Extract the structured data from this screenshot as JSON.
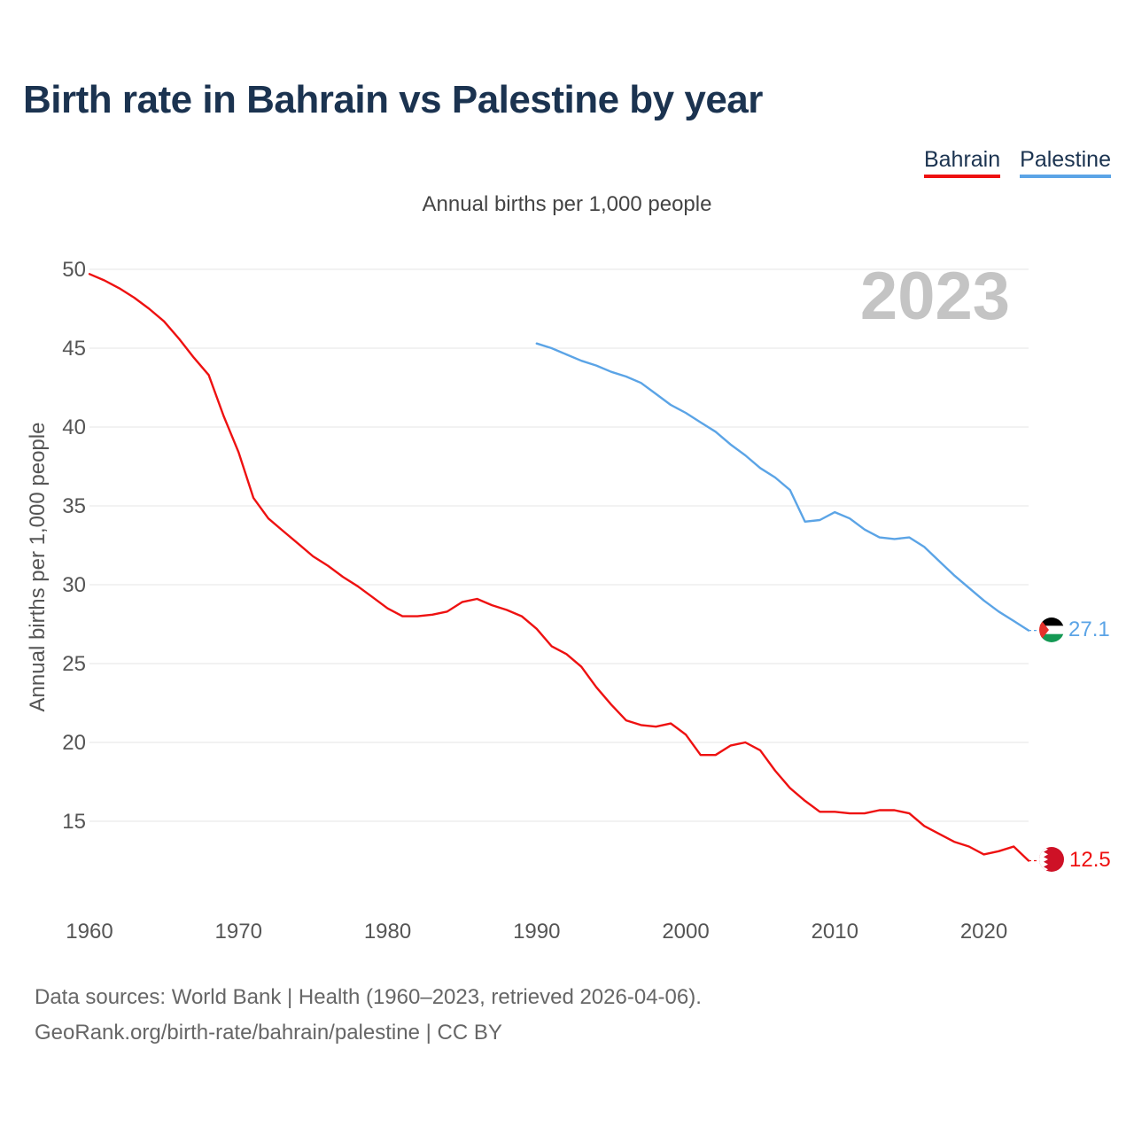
{
  "title": "Birth rate in Bahrain vs Palestine by year",
  "subtitle": "Annual births per 1,000 people",
  "legend": [
    {
      "label": "Bahrain",
      "color": "#ee1111"
    },
    {
      "label": "Palestine",
      "color": "#5ba4e6"
    }
  ],
  "year_watermark": "2023",
  "footer": {
    "line1": "Data sources: World Bank | Health (1960–2023, retrieved 2026-04-06).",
    "line2": "GeoRank.org/birth-rate/bahrain/palestine | CC BY"
  },
  "chart_data": {
    "type": "line",
    "title": "Birth rate in Bahrain vs Palestine by year",
    "xlabel": "",
    "ylabel": "Annual births per 1,000 people",
    "xlim": [
      1960,
      2023
    ],
    "ylim": [
      10,
      50
    ],
    "xticks": [
      1960,
      1970,
      1980,
      1990,
      2000,
      2010,
      2020
    ],
    "yticks": [
      15,
      20,
      25,
      30,
      35,
      40,
      45,
      50
    ],
    "grid": true,
    "legend_position": "top-right",
    "series": [
      {
        "name": "Bahrain",
        "color": "#ee1111",
        "end_label": "12.5",
        "flag": "bahrain",
        "x": [
          1960,
          1961,
          1962,
          1963,
          1964,
          1965,
          1966,
          1967,
          1968,
          1969,
          1970,
          1971,
          1972,
          1973,
          1974,
          1975,
          1976,
          1977,
          1978,
          1979,
          1980,
          1981,
          1982,
          1983,
          1984,
          1985,
          1986,
          1987,
          1988,
          1989,
          1990,
          1991,
          1992,
          1993,
          1994,
          1995,
          1996,
          1997,
          1998,
          1999,
          2000,
          2001,
          2002,
          2003,
          2004,
          2005,
          2006,
          2007,
          2008,
          2009,
          2010,
          2011,
          2012,
          2013,
          2014,
          2015,
          2016,
          2017,
          2018,
          2019,
          2020,
          2021,
          2022,
          2023
        ],
        "values": [
          49.7,
          49.3,
          48.8,
          48.2,
          47.5,
          46.7,
          45.6,
          44.4,
          43.3,
          40.7,
          38.4,
          35.5,
          34.2,
          33.4,
          32.6,
          31.8,
          31.2,
          30.5,
          29.9,
          29.2,
          28.5,
          28.0,
          28.0,
          28.1,
          28.3,
          28.9,
          29.1,
          28.7,
          28.4,
          28.0,
          27.2,
          26.1,
          25.6,
          24.8,
          23.5,
          22.4,
          21.4,
          21.1,
          21.0,
          21.2,
          20.5,
          19.2,
          19.2,
          19.8,
          20.0,
          19.5,
          18.2,
          17.1,
          16.3,
          15.6,
          15.6,
          15.5,
          15.5,
          15.7,
          15.7,
          15.5,
          14.7,
          14.2,
          13.7,
          13.4,
          12.9,
          13.1,
          13.4,
          12.5
        ]
      },
      {
        "name": "Palestine",
        "color": "#5ba4e6",
        "end_label": "27.1",
        "flag": "palestine",
        "x": [
          1990,
          1991,
          1992,
          1993,
          1994,
          1995,
          1996,
          1997,
          1998,
          1999,
          2000,
          2001,
          2002,
          2003,
          2004,
          2005,
          2006,
          2007,
          2008,
          2009,
          2010,
          2011,
          2012,
          2013,
          2014,
          2015,
          2016,
          2017,
          2018,
          2019,
          2020,
          2021,
          2022,
          2023
        ],
        "values": [
          45.3,
          45.0,
          44.6,
          44.2,
          43.9,
          43.5,
          43.2,
          42.8,
          42.1,
          41.4,
          40.9,
          40.3,
          39.7,
          38.9,
          38.2,
          37.4,
          36.8,
          36.0,
          34.0,
          34.1,
          34.6,
          34.2,
          33.5,
          33.0,
          32.9,
          33.0,
          32.4,
          31.5,
          30.6,
          29.8,
          29.0,
          28.3,
          27.7,
          27.1
        ]
      }
    ]
  }
}
